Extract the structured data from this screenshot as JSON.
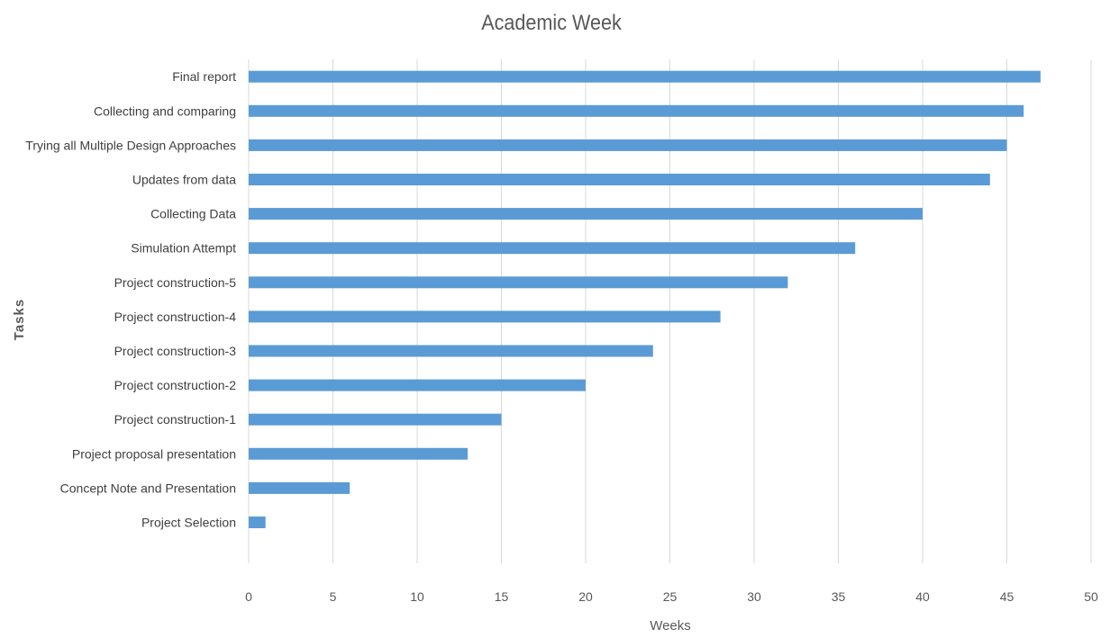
{
  "chart_data": {
    "type": "bar",
    "orientation": "horizontal",
    "title": "Academic Week",
    "xlabel": "Weeks",
    "ylabel": "Tasks",
    "xlim": [
      0,
      50
    ],
    "xticks": [
      "0",
      "5",
      "10",
      "15",
      "20",
      "25",
      "30",
      "35",
      "40",
      "45",
      "50"
    ],
    "grid": true,
    "color": "#5b9bd5",
    "categories": [
      "Project Selection",
      "Concept Note and Presentation",
      "Project proposal presentation",
      "Project construction-1",
      "Project construction-2",
      "Project construction-3",
      "Project construction-4",
      "Project construction-5",
      "Simulation Attempt",
      "Collecting Data",
      "Updates from data",
      "Trying all Multiple Design Approaches",
      "Collecting and comparing",
      "Final report"
    ],
    "values": [
      1,
      6,
      13,
      15,
      20,
      24,
      28,
      32,
      36,
      40,
      44,
      45,
      46,
      47
    ]
  }
}
